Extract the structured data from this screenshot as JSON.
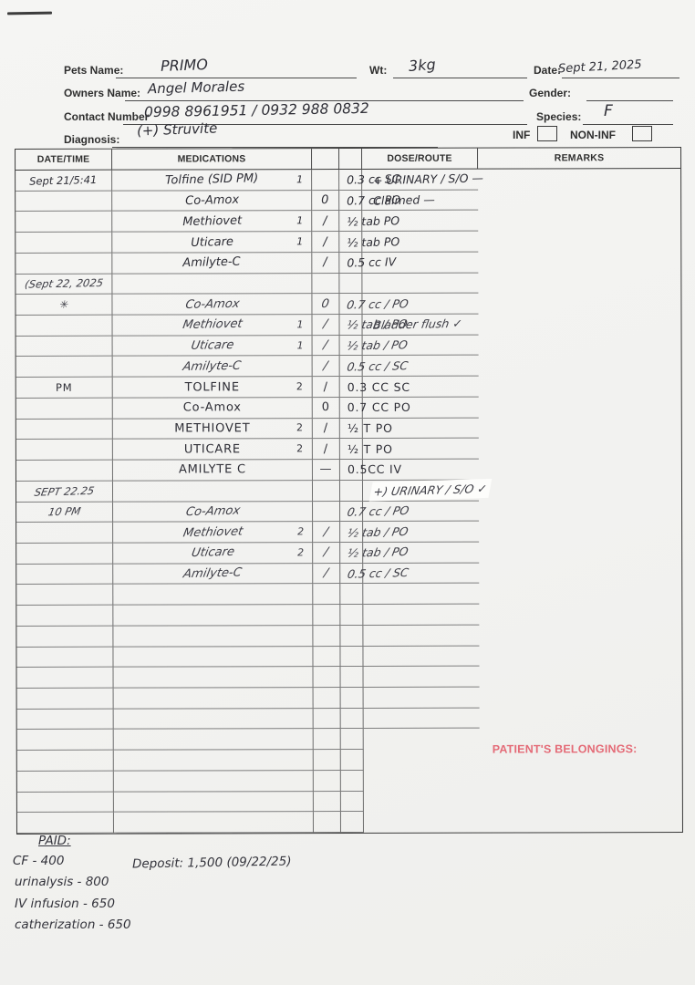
{
  "header": {
    "pets_name_label": "Pets Name:",
    "pets_name": "PRIMO",
    "wt_label": "Wt:",
    "wt": "3kg",
    "date_label": "Date:",
    "date": "Sept 21, 2025",
    "owners_name_label": "Owners Name:",
    "owners_name": "Angel Morales",
    "gender_label": "Gender:",
    "gender": "",
    "contact_label": "Contact Number",
    "contact": "0998 8961951 / 0932 988 0832",
    "species_label": "Species:",
    "species": "F",
    "diagnosis_label": "Diagnosis:",
    "diagnosis": "(+) Struvite",
    "inf_label": "INF",
    "non_inf_label": "NON-INF"
  },
  "table": {
    "columns": [
      "DATE/TIME",
      "MEDICATIONS",
      "",
      "",
      "DOSE/ROUTE",
      "REMARKS"
    ],
    "rows": [
      {
        "s": 1,
        "d": "Sept 21/5:41",
        "m": "Tolfine (SID PM)",
        "q": "1",
        "k": "",
        "o": "0.3 cc SC",
        "r": "+ URINARY / S/O —"
      },
      {
        "s": 1,
        "d": "",
        "m": "Co-Amox",
        "q": "",
        "k": "0",
        "o": "0.7 cc PO",
        "r": "Claimed —"
      },
      {
        "s": 1,
        "d": "",
        "m": "Methiovet",
        "q": "1",
        "k": "/",
        "o": "½ tab PO",
        "r": ""
      },
      {
        "s": 1,
        "d": "",
        "m": "Uticare",
        "q": "1",
        "k": "/",
        "o": "½ tab PO",
        "r": ""
      },
      {
        "s": 1,
        "d": "",
        "m": "Amilyte-C",
        "q": "",
        "k": "/",
        "o": "0.5 cc IV",
        "r": ""
      },
      {
        "s": 2,
        "d": "(Sept 22, 2025",
        "m": "",
        "q": "",
        "k": "",
        "o": "",
        "r": ""
      },
      {
        "s": 2,
        "d": "✳",
        "m": "Co-Amox",
        "q": "",
        "k": "0",
        "o": "0.7 cc / PO",
        "r": ""
      },
      {
        "s": 2,
        "d": "",
        "m": "Methiovet",
        "q": "1",
        "k": "/",
        "o": "½ tab / PO",
        "r": "Bladder flush ✓"
      },
      {
        "s": 2,
        "d": "",
        "m": "Uticare",
        "q": "1",
        "k": "/",
        "o": "½ tab / PO",
        "r": ""
      },
      {
        "s": 2,
        "d": "",
        "m": "Amilyte-C",
        "q": "",
        "k": "/",
        "o": "0.5 cc / SC",
        "r": ""
      },
      {
        "s": 3,
        "d": "PM",
        "m": "TOLFINE",
        "q": "2",
        "k": "/",
        "o": "0.3 CC SC",
        "r": ""
      },
      {
        "s": 3,
        "d": "",
        "m": "Co-Amox",
        "q": "",
        "k": "0",
        "o": "0.7 CC PO",
        "r": ""
      },
      {
        "s": 3,
        "d": "",
        "m": "METHIOVET",
        "q": "2",
        "k": "/",
        "o": "½ T PO",
        "r": ""
      },
      {
        "s": 3,
        "d": "",
        "m": "UTICARE",
        "q": "2",
        "k": "/",
        "o": "½ T PO",
        "r": ""
      },
      {
        "s": 3,
        "d": "",
        "m": "AMILYTE C",
        "q": "",
        "k": "—",
        "o": "0.5CC IV",
        "r": ""
      },
      {
        "s": 4,
        "d": "SEPT 22.25",
        "m": "",
        "q": "",
        "k": "",
        "o": "",
        "r": "+) URINARY / S/O ✓",
        "w": true
      },
      {
        "s": 4,
        "d": "10 PM",
        "m": "Co-Amox",
        "q": "",
        "k": "",
        "o": "0.7 cc / PO",
        "r": ""
      },
      {
        "s": 4,
        "d": "",
        "m": "Methiovet",
        "q": "2",
        "k": "/",
        "o": "½ tab / PO",
        "r": ""
      },
      {
        "s": 4,
        "d": "",
        "m": "Uticare",
        "q": "2",
        "k": "/",
        "o": "½ tab / PO",
        "r": ""
      },
      {
        "s": 4,
        "d": "",
        "m": "Amilyte-C",
        "q": "",
        "k": "/",
        "o": "0.5 cc / SC",
        "r": ""
      },
      {},
      {},
      {},
      {},
      {},
      {},
      {},
      {},
      {},
      {},
      {},
      {}
    ]
  },
  "belongings_label": "PATIENT'S BELONGINGS:",
  "footer": {
    "paid_label": "PAID:",
    "line1": "CF -  400",
    "line2": "urinalysis -  800",
    "line3": "IV infusion -  650",
    "line4": "catherization -  650",
    "deposit": "Deposit:  1,500   (09/22/25)"
  },
  "colors": {
    "accent_red": "#e46b77",
    "ink": "#2e2e36",
    "grid_line": "#6d6d6d"
  }
}
